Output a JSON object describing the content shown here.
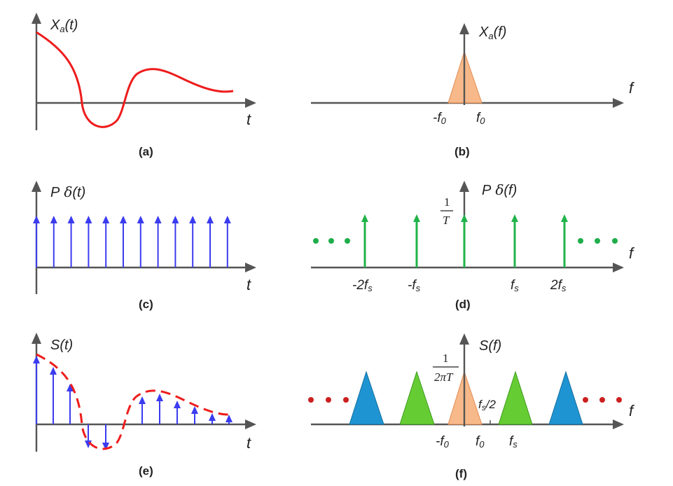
{
  "colors": {
    "axis": "#555555",
    "signal": "#ee1c1c",
    "impulse": "#3b3bf0",
    "green": "#21b34a",
    "peach": "#f7b98a",
    "green_fill": "#66cc33",
    "blue_fill": "#1f94d2",
    "dots_green": "#1fae4a",
    "dots_red": "#cc1f1f"
  },
  "panels": {
    "a": {
      "caption": "(a)",
      "ylabel_main": "X",
      "ylabel_sub": "a",
      "ylabel_tail": "(t)",
      "xlabel": "t"
    },
    "b": {
      "caption": "(b)",
      "ylabel_main": "X",
      "ylabel_sub": "a",
      "ylabel_tail": "(f)",
      "xlabel": "f",
      "tick_neg_main": "-f",
      "tick_neg_sub": "0",
      "tick_pos_main": "f",
      "tick_pos_sub": "0"
    },
    "c": {
      "caption": "(c)",
      "ylabel_main": "P",
      "ylabel_sym": "δ",
      "ylabel_tail": "(t)",
      "xlabel": "t",
      "impulse_count": 12
    },
    "d": {
      "caption": "(d)",
      "ylabel_main": "P",
      "ylabel_sym": "δ",
      "ylabel_tail": "(f)",
      "xlabel": "f",
      "frac_num": "1",
      "frac_den": "T",
      "ticks": [
        {
          "main": "-2f",
          "sub": "s"
        },
        {
          "main": "-f",
          "sub": "s"
        },
        {
          "main": "f",
          "sub": "s"
        },
        {
          "main": "2f",
          "sub": "s"
        }
      ]
    },
    "e": {
      "caption": "(e)",
      "ylabel": "S(t)",
      "xlabel": "t"
    },
    "f": {
      "caption": "(f)",
      "ylabel": "S(f)",
      "xlabel": "f",
      "frac_num": "1",
      "frac_den": "2πT",
      "half_main": "f",
      "half_sub": "s",
      "half_tail": "/2",
      "tick_neg_main": "-f",
      "tick_neg_sub": "0",
      "tick_pos_main": "f",
      "tick_pos_sub": "0",
      "tick_fs_main": "f",
      "tick_fs_sub": "s"
    }
  }
}
